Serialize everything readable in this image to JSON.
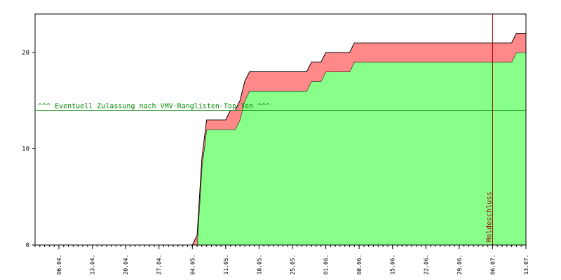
{
  "chart_data": {
    "type": "area",
    "x": [
      "01.04.",
      "04.05.",
      "05.05.",
      "06.05.",
      "07.05.",
      "11.05.",
      "12.05.",
      "13.05.",
      "14.05.",
      "15.05.",
      "16.05.",
      "28.05.",
      "29.05.",
      "31.05.",
      "01.06.",
      "06.06.",
      "07.06.",
      "10.07.",
      "11.07.",
      "13.07."
    ],
    "series": [
      {
        "color": "#88ff88",
        "values": [
          0,
          0,
          0,
          8,
          12,
          12,
          12,
          12,
          13,
          15,
          16,
          16,
          17,
          17,
          18,
          18,
          19,
          19,
          20,
          20
        ]
      },
      {
        "color": "#ff8888",
        "values": [
          0,
          0,
          1,
          1,
          1,
          1,
          2,
          2,
          2,
          2,
          2,
          2,
          2,
          2,
          2,
          2,
          2,
          2,
          2,
          2
        ]
      }
    ],
    "stacked": true,
    "xlim": [
      "01.04.",
      "13.07."
    ],
    "xticks": [
      "06.04.",
      "13.04.",
      "20.04.",
      "27.04.",
      "04.05.",
      "11.05.",
      "18.05.",
      "25.05.",
      "01.06.",
      "08.06.",
      "15.06.",
      "22.06.",
      "29.06.",
      "06.07.",
      "13.07."
    ],
    "ylim": [
      0,
      24
    ],
    "yticks": [
      0,
      10,
      20
    ],
    "reference_line": {
      "value": 14,
      "label": "^^^ Eventuell Zulassung nach VMV-Ranglisten-Top-Ten ^^^",
      "color": "#008800"
    },
    "deadline": {
      "x": "06.07.",
      "label": "Meldeschluss",
      "color": "#990000"
    }
  }
}
